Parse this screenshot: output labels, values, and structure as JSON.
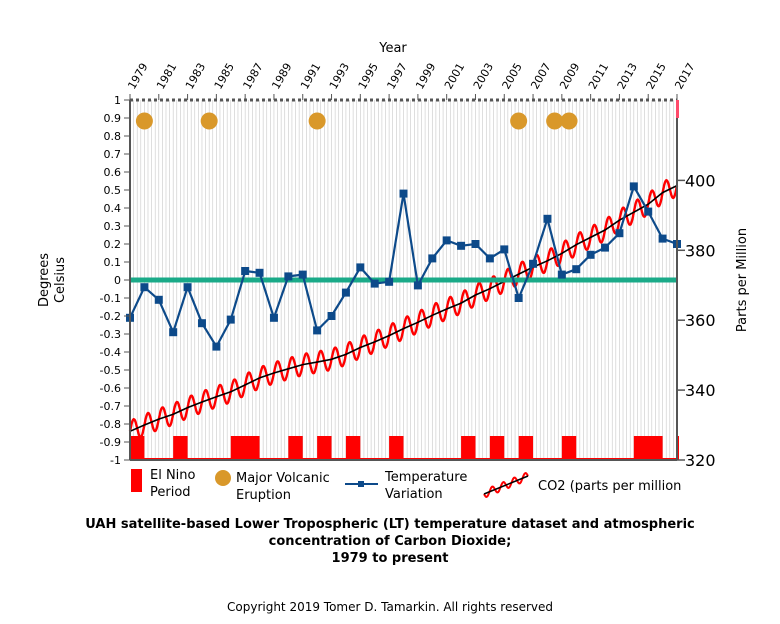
{
  "chart_data": {
    "type": "line",
    "x_title": "Year",
    "y_left_title_line1": "Degrees",
    "y_left_title_line2": "Celsius",
    "y_right_title": "Parts per Million",
    "xlim": [
      1979,
      2017
    ],
    "ylim_left": [
      -1,
      1
    ],
    "ylim_right": [
      320,
      423
    ],
    "x_tick_labels": [
      "1979",
      "1981",
      "1983",
      "1985",
      "1987",
      "1989",
      "1991",
      "1993",
      "1995",
      "1997",
      "1999",
      "2001",
      "2003",
      "2005",
      "2007",
      "2009",
      "2011",
      "2013",
      "2015",
      "2017"
    ],
    "y_left_tick_labels": [
      "1",
      "0.9",
      "0.8",
      "0.7",
      "0.6",
      "0.5",
      "0.4",
      "0.3",
      "0.2",
      "0.1",
      "0",
      "-0.1",
      "-0.2",
      "-0.3",
      "-0.4",
      "-0.5",
      "-0.6",
      "-0.7",
      "-0.8",
      "-0.9",
      "-1"
    ],
    "y_right_tick_labels": [
      "320",
      "340",
      "360",
      "380",
      "400"
    ],
    "series": [
      {
        "name": "Temperature Variation",
        "color": "#0d4a8a",
        "x": [
          1979,
          1980,
          1981,
          1982,
          1983,
          1984,
          1985,
          1986,
          1987,
          1988,
          1989,
          1990,
          1991,
          1992,
          1993,
          1994,
          1995,
          1996,
          1997,
          1998,
          1999,
          2000,
          2001,
          2002,
          2003,
          2004,
          2005,
          2006,
          2007,
          2008,
          2009,
          2010,
          2011,
          2012,
          2013,
          2014,
          2015,
          2016,
          2017
        ],
        "y": [
          -0.21,
          -0.04,
          -0.11,
          -0.29,
          -0.04,
          -0.24,
          -0.37,
          -0.22,
          0.05,
          0.04,
          -0.21,
          0.02,
          0.03,
          -0.28,
          -0.2,
          -0.07,
          0.07,
          -0.02,
          -0.01,
          0.48,
          -0.03,
          0.12,
          0.22,
          0.19,
          0.2,
          0.12,
          0.17,
          -0.1,
          0.09,
          0.34,
          0.03,
          0.06,
          0.14,
          0.18,
          0.26,
          0.52,
          0.38,
          0.23,
          0.2
        ]
      },
      {
        "name": "CO2 (parts per million",
        "color": "#ff0000",
        "trend_color": "#000000",
        "seasonal_amplitude_ppm": 3,
        "x": [
          1979,
          1980,
          1981,
          1982,
          1983,
          1984,
          1985,
          1986,
          1987,
          1988,
          1989,
          1990,
          1991,
          1992,
          1993,
          1994,
          1995,
          1996,
          1997,
          1998,
          1999,
          2000,
          2001,
          2002,
          2003,
          2004,
          2005,
          2006,
          2007,
          2008,
          2009,
          2010,
          2011,
          2012,
          2013,
          2014,
          2015,
          2016,
          2017
        ],
        "y": [
          328.2,
          330.0,
          331.7,
          333.1,
          335.0,
          336.6,
          338.1,
          339.5,
          341.5,
          343.5,
          344.9,
          346.1,
          347.3,
          348.0,
          348.8,
          350.2,
          352.2,
          353.8,
          355.6,
          357.6,
          359.4,
          361.4,
          363.2,
          364.9,
          367.2,
          369.0,
          371.1,
          373.2,
          375.2,
          377.0,
          379.1,
          381.6,
          383.7,
          385.8,
          388.6,
          390.9,
          393.2,
          396.5,
          398.5
        ]
      }
    ],
    "el_nino_periods": [
      [
        1979,
        1980
      ],
      [
        1982,
        1983
      ],
      [
        1986,
        1988
      ],
      [
        1990,
        1991
      ],
      [
        1992,
        1993
      ],
      [
        1994,
        1995
      ],
      [
        1997,
        1998
      ],
      [
        2002,
        2003
      ],
      [
        2004,
        2005
      ],
      [
        2006,
        2007
      ],
      [
        2009,
        2010
      ],
      [
        2014,
        2016
      ],
      [
        2017,
        2018
      ]
    ],
    "volcanic_eruptions": [
      1980,
      1984.5,
      1992,
      2006,
      2008.5,
      2009.5
    ],
    "zero_line_color": "#1aaa88",
    "el_nino_color": "#ff0000",
    "volcano_color": "#d9982a",
    "legend": {
      "el_nino_line1": "El Nino",
      "el_nino_line2": "Period",
      "volcano_line1": "Major Volcanic",
      "volcano_line2": "Eruption",
      "temp_line1": "Temperature",
      "temp_line2": "Variation",
      "co2": "CO2 (parts per million"
    },
    "grid": "vertical"
  },
  "caption": {
    "line1": "UAH satellite-based Lower Tropospheric (LT) temperature dataset and atmospheric",
    "line2": "concentration of Carbon Dioxide;",
    "line3": "1979 to present"
  },
  "copyright": "Copyright 2019 Tomer D. Tamarkin.  All rights reserved"
}
